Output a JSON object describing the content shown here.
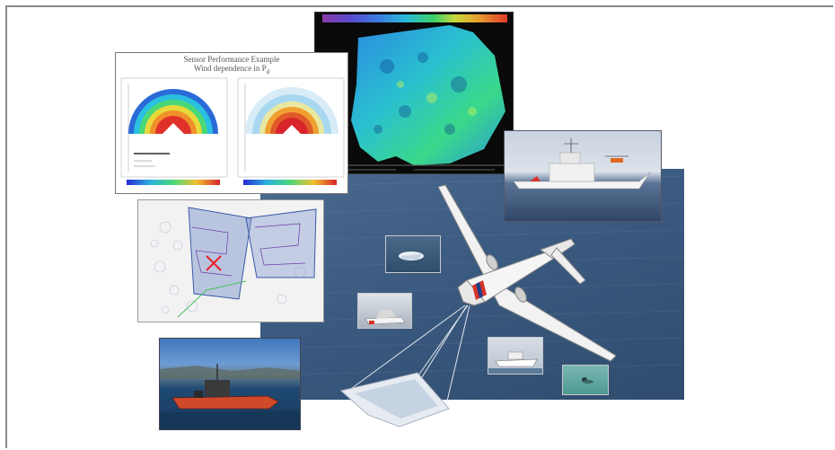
{
  "sensor_chart": {
    "title_line1": "Sensor Performance Example",
    "title_line2": "Wind dependence in P",
    "title_subscript": "d"
  },
  "icons": {
    "radar": "radar-wind-map-icon",
    "ship": "cutter-ship-photo",
    "coverage": "search-coverage-map-icon",
    "boat": "rigid-inflatable-boat-photo",
    "aircraft": "patrol-aircraft-icon"
  },
  "colors": {
    "ocean": "#3b5a80",
    "radar_bg": "#0a0a0a",
    "target_marker": "#e8202a",
    "frame": "#8a8a8a"
  }
}
